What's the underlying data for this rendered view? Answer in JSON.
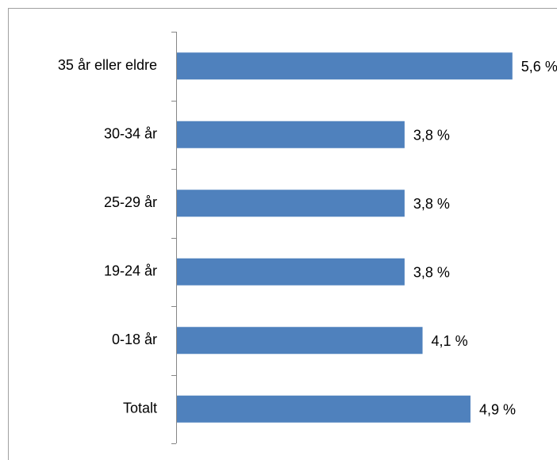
{
  "chart_data": {
    "type": "bar",
    "orientation": "horizontal",
    "categories": [
      "35 år eller eldre",
      "30-34 år",
      "25-29 år",
      "19-24 år",
      "0-18 år",
      "Totalt"
    ],
    "values": [
      5.6,
      3.8,
      3.8,
      3.8,
      4.1,
      4.9
    ],
    "value_labels": [
      "5,6 %",
      "3,8 %",
      "3,8 %",
      "3,8 %",
      "4,1 %",
      "4,9 %"
    ],
    "color": "#4f81bd"
  }
}
